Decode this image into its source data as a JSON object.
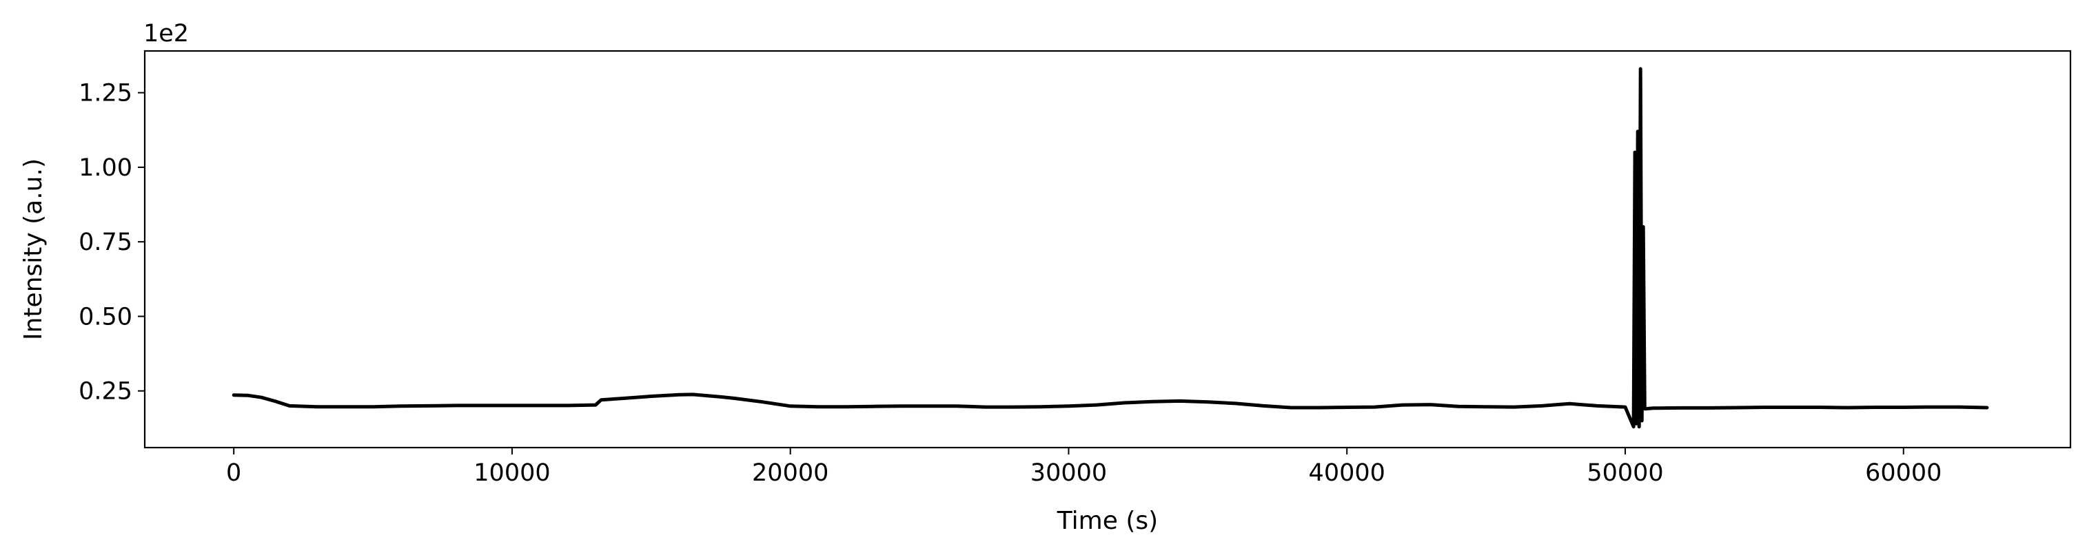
{
  "chart_data": {
    "type": "line",
    "title": "",
    "xlabel": "Time (s)",
    "ylabel": "Intensity (a.u.)",
    "y_offset_label": "1e2",
    "xlim": [
      -3200,
      66000
    ],
    "ylim": [
      0.06,
      1.39
    ],
    "x_ticks": [
      0,
      10000,
      20000,
      30000,
      40000,
      50000,
      60000
    ],
    "x_tick_labels": [
      "0",
      "10000",
      "20000",
      "30000",
      "40000",
      "50000",
      "60000"
    ],
    "y_ticks": [
      0.25,
      0.5,
      0.75,
      1.0,
      1.25
    ],
    "y_tick_labels": [
      "0.25",
      "0.50",
      "0.75",
      "1.00",
      "1.25"
    ],
    "grid": false,
    "line_color": "#000000",
    "series": [
      {
        "name": "",
        "x": [
          0,
          500,
          1000,
          1500,
          2000,
          3000,
          4000,
          5000,
          6000,
          7000,
          8000,
          9000,
          10000,
          11000,
          12000,
          13000,
          13200,
          14000,
          15000,
          16000,
          16500,
          17000,
          17500,
          18000,
          19000,
          20000,
          21000,
          22000,
          23000,
          24000,
          25000,
          26000,
          27000,
          28000,
          29000,
          30000,
          31000,
          32000,
          33000,
          34000,
          35000,
          36000,
          37000,
          38000,
          39000,
          40000,
          41000,
          42000,
          43000,
          44000,
          45000,
          46000,
          47000,
          48000,
          49000,
          50000,
          50300,
          50350,
          50400,
          50450,
          50500,
          50550,
          50600,
          50650,
          50700,
          51000,
          52000,
          53000,
          54000,
          55000,
          56000,
          57000,
          58000,
          59000,
          60000,
          61000,
          62000,
          63000
        ],
        "y": [
          0.236,
          0.235,
          0.228,
          0.215,
          0.2,
          0.197,
          0.197,
          0.197,
          0.199,
          0.2,
          0.201,
          0.201,
          0.201,
          0.201,
          0.201,
          0.203,
          0.22,
          0.225,
          0.232,
          0.237,
          0.238,
          0.234,
          0.23,
          0.225,
          0.213,
          0.199,
          0.197,
          0.197,
          0.198,
          0.199,
          0.199,
          0.199,
          0.196,
          0.196,
          0.197,
          0.199,
          0.203,
          0.21,
          0.214,
          0.216,
          0.213,
          0.208,
          0.2,
          0.194,
          0.194,
          0.195,
          0.196,
          0.203,
          0.204,
          0.198,
          0.197,
          0.196,
          0.2,
          0.207,
          0.2,
          0.196,
          0.13,
          1.05,
          0.14,
          1.12,
          0.13,
          1.33,
          0.15,
          0.8,
          0.19,
          0.192,
          0.193,
          0.193,
          0.194,
          0.195,
          0.195,
          0.195,
          0.194,
          0.195,
          0.195,
          0.196,
          0.196,
          0.194
        ]
      }
    ]
  }
}
